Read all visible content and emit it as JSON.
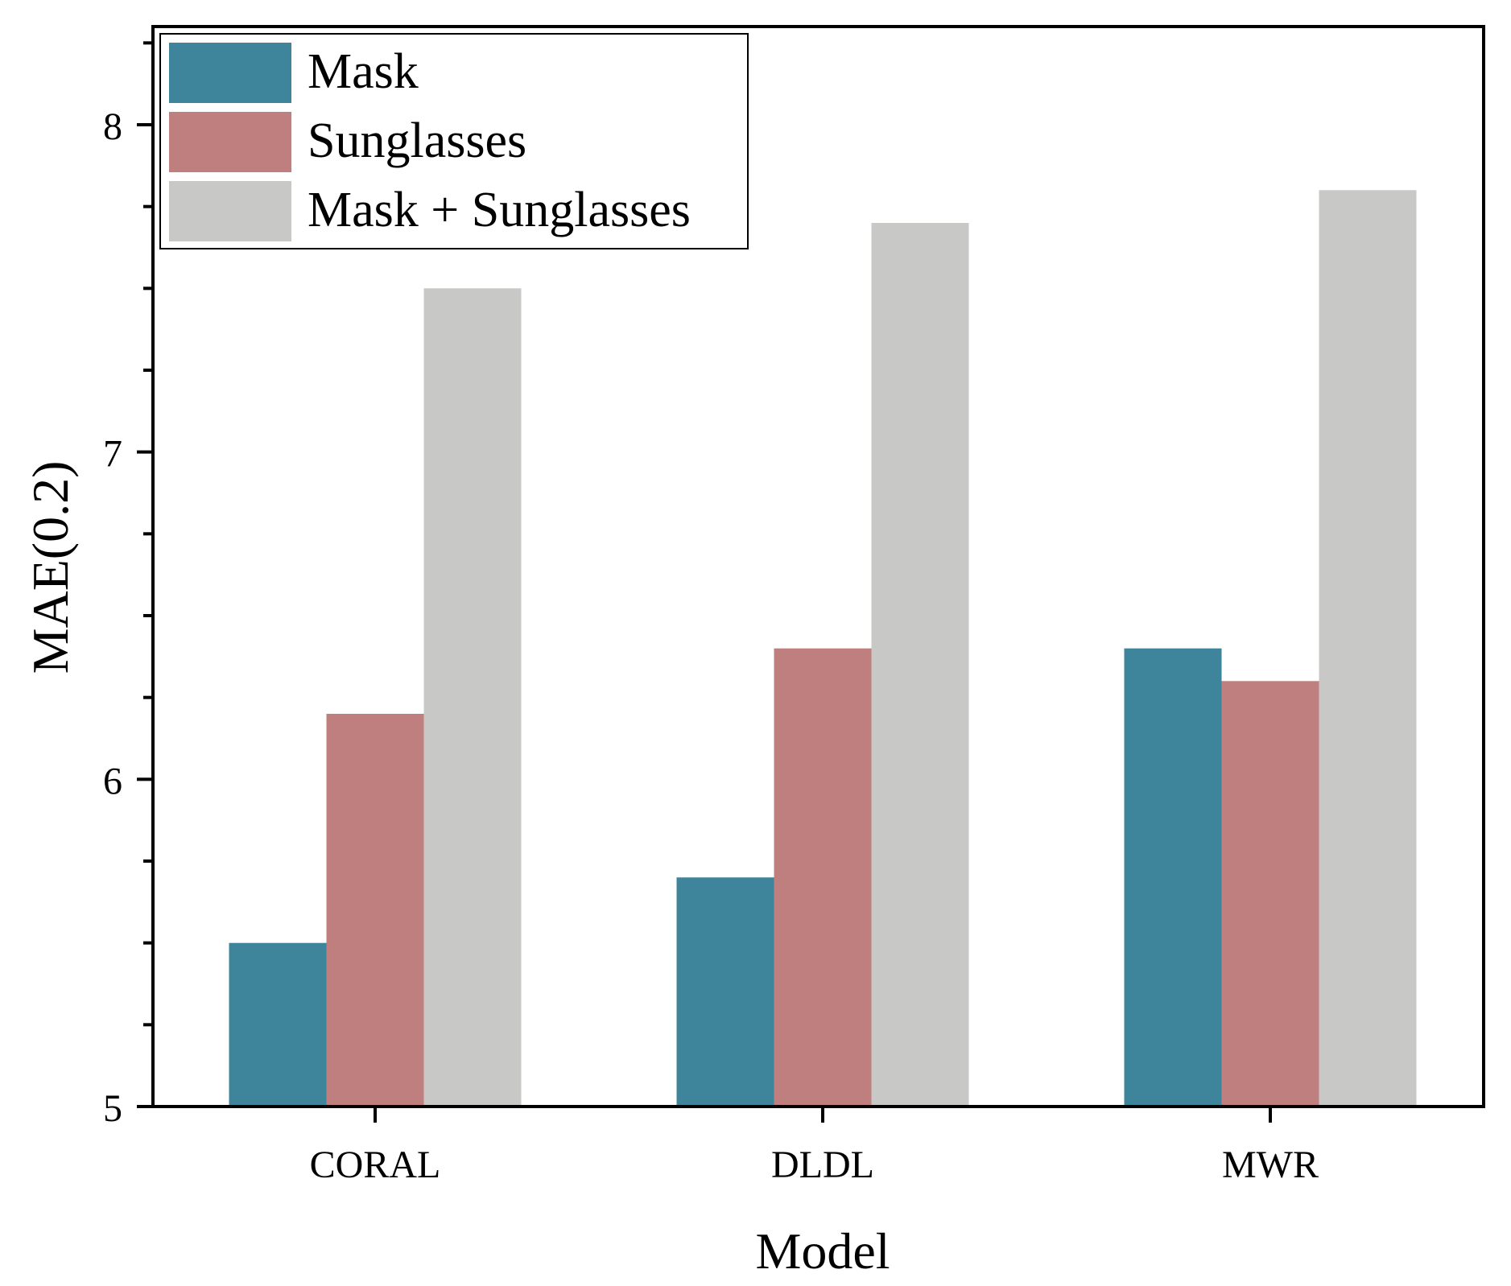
{
  "chart_data": {
    "type": "bar",
    "title": "",
    "xlabel": "Model",
    "ylabel": "MAE(0.2)",
    "categories": [
      "CORAL",
      "DLDL",
      "MWR"
    ],
    "series": [
      {
        "name": "Mask",
        "color": "#3e849a",
        "values": [
          5.5,
          5.7,
          6.4
        ]
      },
      {
        "name": "Sunglasses",
        "color": "#bf7f7e",
        "values": [
          6.2,
          6.4,
          6.3
        ]
      },
      {
        "name": "Mask + Sunglasses",
        "color": "#c8c9c6",
        "values": [
          7.5,
          7.7,
          7.8
        ]
      }
    ],
    "ylim": [
      5,
      8.3
    ],
    "yticks": [
      5,
      6,
      7,
      8
    ],
    "yticks_minor_step": 0.25,
    "grid": false,
    "legend_position": "top-left"
  }
}
